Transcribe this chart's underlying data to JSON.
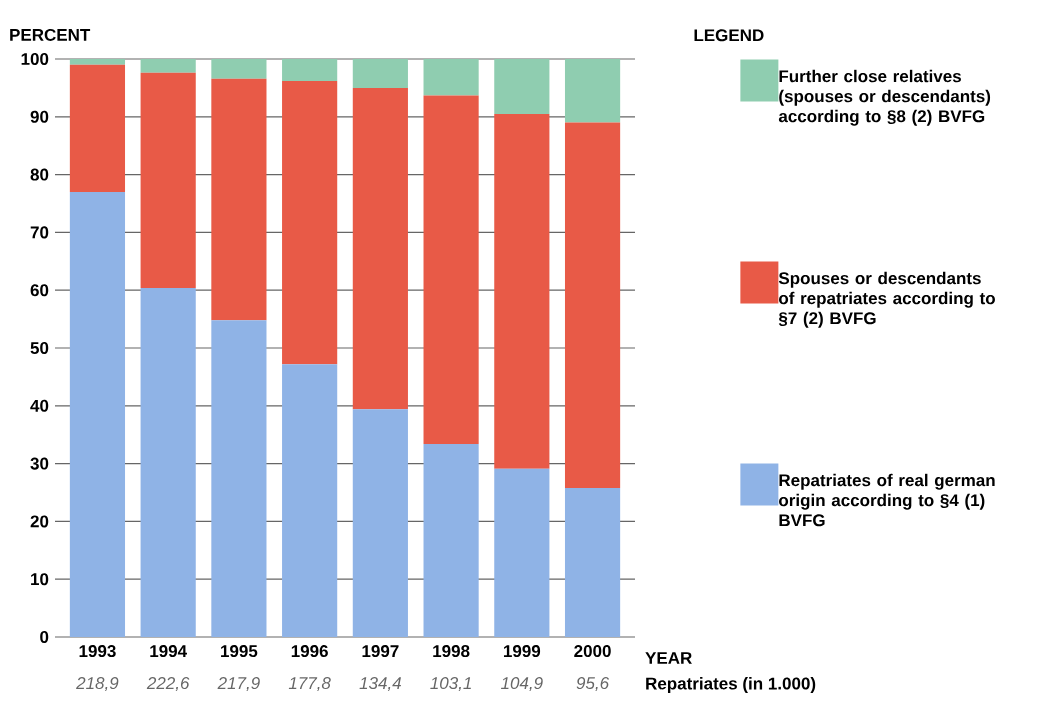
{
  "chart_data": {
    "type": "bar",
    "stacked": true,
    "ylabel": "PERCENT",
    "xlabel": "YEAR",
    "legend_title": "LEGEND",
    "legend": "right",
    "grid": "y",
    "categories": [
      "1993",
      "1994",
      "1995",
      "1996",
      "1997",
      "1998",
      "1999",
      "2000"
    ],
    "ylim": [
      0,
      100
    ],
    "yticks": [
      0,
      10,
      20,
      30,
      40,
      50,
      60,
      70,
      80,
      90,
      100
    ],
    "series": [
      {
        "name": "Repatriates of real german origin according to §4 (1) BVFG",
        "color": "#8fb3e6",
        "values": [
          77.0,
          60.4,
          54.8,
          47.2,
          39.4,
          33.4,
          29.1,
          25.8
        ]
      },
      {
        "name": "Spouses or descendants of repatriates according to §7 (2) BVFG",
        "color": "#e85a47",
        "values": [
          22.0,
          37.2,
          41.8,
          49.0,
          55.6,
          60.3,
          61.4,
          63.2
        ]
      },
      {
        "name": "Further close relatives (spouses or descendants) according to §8 (2) BVFG",
        "color": "#8fcdb0",
        "values": [
          1.0,
          2.4,
          3.4,
          3.8,
          5.0,
          6.3,
          9.5,
          11.0
        ]
      }
    ],
    "annotations": [
      "218,9",
      "222,6",
      "217,9",
      "177,8",
      "134,4",
      "103,1",
      "104,9",
      "95,6",
      "Repatriates (in 1.000)"
    ]
  }
}
